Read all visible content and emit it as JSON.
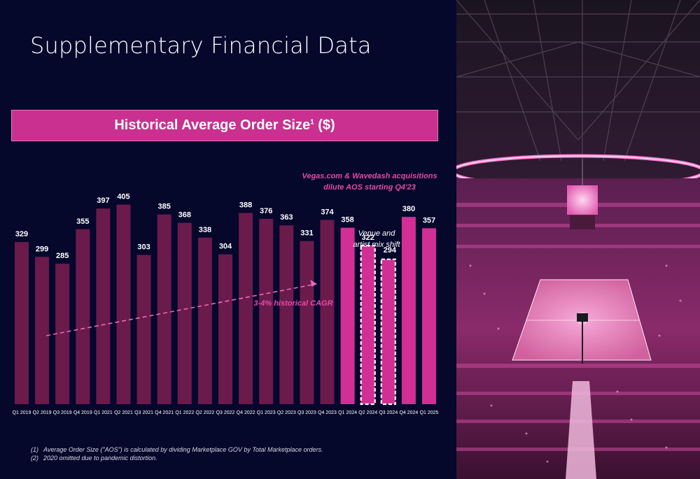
{
  "title": "Supplementary Financial Data",
  "banner": {
    "text": "Historical Average Order Size",
    "superscript": "1",
    "unit": " ($)"
  },
  "colors": {
    "historical_bar": "#6b1a4c",
    "recent_bar": "#d12f93",
    "background": "#05072b",
    "annotation": "#e44aa6",
    "trend": "#e86bb6"
  },
  "chart_data": {
    "type": "bar",
    "categories": [
      "Q1 2019",
      "Q2 2019",
      "Q3 2019",
      "Q4 2019",
      "Q1 2021",
      "Q2 2021",
      "Q3 2021",
      "Q4 2021",
      "Q1 2022",
      "Q2 2022",
      "Q3 2022",
      "Q4 2022",
      "Q1 2023",
      "Q2 2023",
      "Q3 2023",
      "Q4 2023",
      "Q1 2024",
      "Q2 2024",
      "Q3 2024",
      "Q4 2024",
      "Q1 2025"
    ],
    "values": [
      329,
      299,
      285,
      355,
      397,
      405,
      303,
      385,
      368,
      338,
      304,
      388,
      376,
      363,
      331,
      374,
      358,
      322,
      294,
      380,
      357
    ],
    "highlighted_from_index": 16,
    "outlined_indices": [
      17,
      18
    ],
    "ylim": [
      0,
      420
    ],
    "grid": false,
    "legend": "none",
    "annotations": [
      {
        "text_line1": "Vegas.com & Wavedash acquisitions",
        "text_line2": "dilute AOS starting Q4'23"
      },
      {
        "text_line1": "Venue and",
        "text_line2": "artist mix shift"
      },
      {
        "text": "3-4% historical CAGR"
      }
    ]
  },
  "footnotes": [
    {
      "num": "(1)",
      "text": "Average Order Size (\"AOS\") is calculated by dividing Marketplace GOV by Total Marketplace orders."
    },
    {
      "num": "(2)",
      "text": "2020 omitted due to pandemic distortion."
    }
  ],
  "photo": {
    "subject": "arena-basketball-court-image"
  }
}
